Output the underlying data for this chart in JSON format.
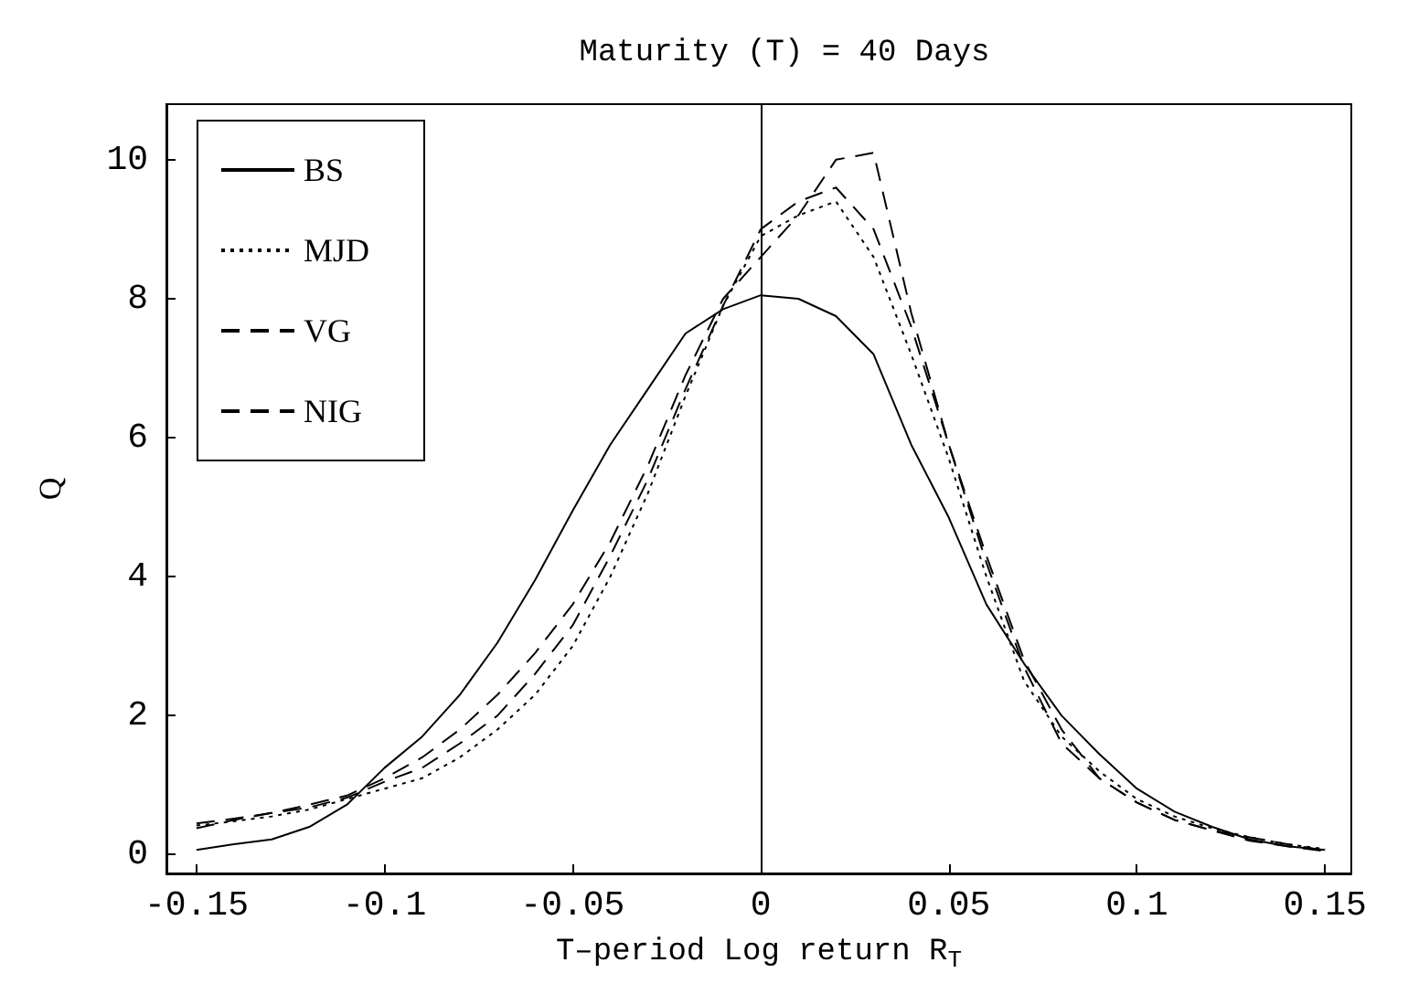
{
  "chart_data": {
    "type": "line",
    "title": "Maturity (T) = 40 Days",
    "xlabel": "T–period Log return R$_{T}$",
    "ylabel": "Q",
    "x": [
      -0.15,
      -0.14,
      -0.13,
      -0.12,
      -0.11,
      -0.1,
      -0.09,
      -0.08,
      -0.07,
      -0.06,
      -0.05,
      -0.04,
      -0.03,
      -0.02,
      -0.01,
      0,
      0.01,
      0.02,
      0.03,
      0.04,
      0.05,
      0.06,
      0.07,
      0.08,
      0.09,
      0.1,
      0.11,
      0.12,
      0.13,
      0.14,
      0.15
    ],
    "series": [
      {
        "name": "BS",
        "color": "#000000",
        "line_style": "solid",
        "values": [
          0.07,
          0.15,
          0.22,
          0.4,
          0.72,
          1.25,
          1.7,
          2.3,
          3.05,
          3.95,
          4.95,
          5.9,
          6.7,
          7.5,
          7.85,
          8.05,
          8.0,
          7.75,
          7.2,
          5.9,
          4.85,
          3.6,
          2.75,
          2.0,
          1.45,
          0.95,
          0.62,
          0.4,
          0.22,
          0.12,
          0.07
        ]
      },
      {
        "name": "MJD",
        "color": "#000000",
        "line_style": "dotted",
        "values": [
          0.42,
          0.48,
          0.55,
          0.65,
          0.8,
          0.95,
          1.1,
          1.4,
          1.8,
          2.3,
          3.0,
          4.0,
          5.2,
          6.6,
          7.9,
          8.9,
          9.2,
          9.4,
          8.6,
          7.2,
          5.7,
          4.0,
          2.5,
          1.7,
          1.2,
          0.8,
          0.55,
          0.38,
          0.25,
          0.15,
          0.08
        ]
      },
      {
        "name": "VG",
        "color": "#000000",
        "line_style": "dashed",
        "values": [
          0.38,
          0.5,
          0.6,
          0.72,
          0.85,
          1.1,
          1.4,
          1.8,
          2.3,
          2.9,
          3.6,
          4.5,
          5.6,
          6.9,
          8.0,
          8.6,
          9.2,
          10.0,
          10.1,
          7.8,
          5.9,
          4.3,
          2.8,
          1.8,
          1.1,
          0.75,
          0.5,
          0.35,
          0.2,
          0.12,
          0.05
        ]
      },
      {
        "name": "NIG",
        "color": "#000000",
        "line_style": "dashed",
        "values": [
          0.45,
          0.52,
          0.6,
          0.68,
          0.82,
          1.05,
          1.25,
          1.6,
          2.0,
          2.6,
          3.3,
          4.3,
          5.4,
          6.7,
          7.9,
          9.0,
          9.4,
          9.6,
          9.0,
          7.6,
          5.9,
          4.2,
          2.7,
          1.6,
          1.1,
          0.75,
          0.5,
          0.35,
          0.25,
          0.15,
          0.06
        ]
      }
    ],
    "xlim": [
      -0.158,
      0.157
    ],
    "xticks": [
      -0.15,
      -0.1,
      -0.05,
      0,
      0.05,
      0.1,
      0.15
    ],
    "ylim": [
      -0.27,
      10.8
    ],
    "yticks": [
      0,
      2,
      4,
      6,
      8,
      10
    ],
    "ref_lines": [
      {
        "axis": "x",
        "value": 0,
        "color": "#000000",
        "line_style": "solid"
      }
    ],
    "grid": false,
    "legend": "top left",
    "marker": "none"
  }
}
